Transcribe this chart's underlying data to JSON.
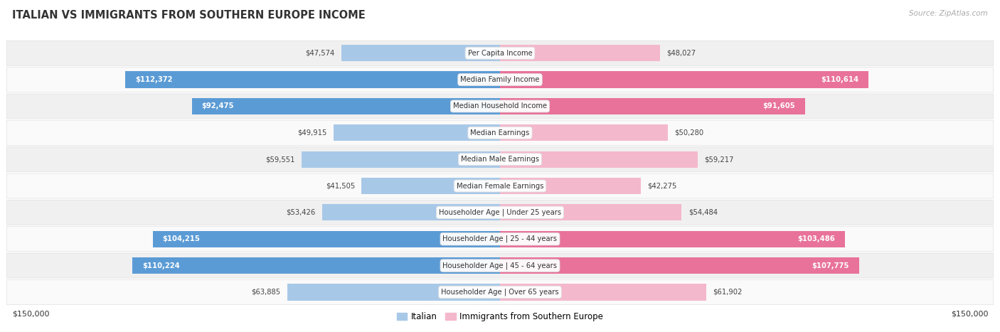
{
  "title": "ITALIAN VS IMMIGRANTS FROM SOUTHERN EUROPE INCOME",
  "source": "Source: ZipAtlas.com",
  "categories": [
    "Per Capita Income",
    "Median Family Income",
    "Median Household Income",
    "Median Earnings",
    "Median Male Earnings",
    "Median Female Earnings",
    "Householder Age | Under 25 years",
    "Householder Age | 25 - 44 years",
    "Householder Age | 45 - 64 years",
    "Householder Age | Over 65 years"
  ],
  "italian_values": [
    47574,
    112372,
    92475,
    49915,
    59551,
    41505,
    53426,
    104215,
    110224,
    63885
  ],
  "immigrant_values": [
    48027,
    110614,
    91605,
    50280,
    59217,
    42275,
    54484,
    103486,
    107775,
    61902
  ],
  "italian_labels": [
    "$47,574",
    "$112,372",
    "$92,475",
    "$49,915",
    "$59,551",
    "$41,505",
    "$53,426",
    "$104,215",
    "$110,224",
    "$63,885"
  ],
  "immigrant_labels": [
    "$48,027",
    "$110,614",
    "$91,605",
    "$50,280",
    "$59,217",
    "$42,275",
    "$54,484",
    "$103,486",
    "$107,775",
    "$61,902"
  ],
  "italian_color_light": "#a8c8e8",
  "italian_color_dark": "#5b9bd5",
  "immigrant_color_light": "#f4b8cc",
  "immigrant_color_dark": "#e8729a",
  "max_value": 150000,
  "background_color": "#ffffff",
  "row_bg_odd": "#f0f0f0",
  "row_bg_even": "#fafafa",
  "label_threshold": 80000
}
